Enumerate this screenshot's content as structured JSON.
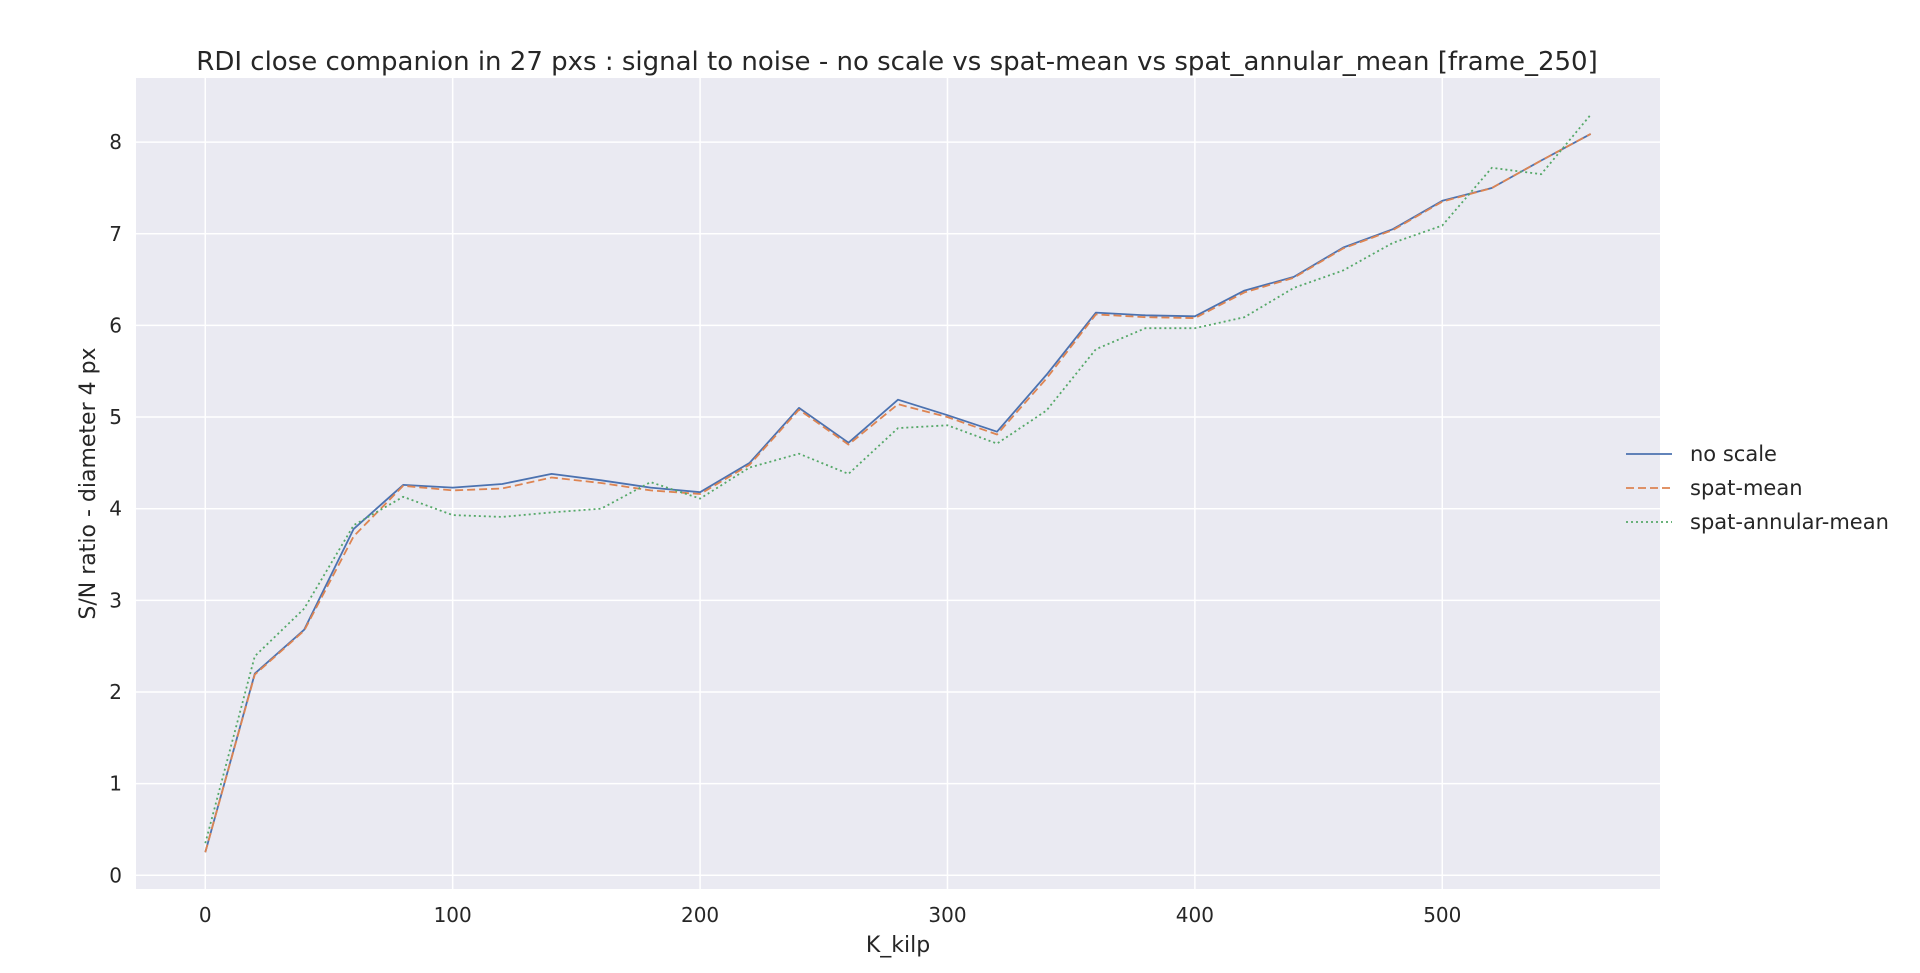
{
  "chart_data": {
    "type": "line",
    "title": "RDI close companion in 27 pxs : signal to noise - no scale vs spat-mean vs spat_annular_mean [frame_250]",
    "xlabel": "K_kilp",
    "ylabel": "S/N ratio - diameter 4 px",
    "xlim": [
      -28,
      588
    ],
    "ylim": [
      -0.15,
      8.7
    ],
    "xticks": [
      0,
      100,
      200,
      300,
      400,
      500
    ],
    "yticks": [
      0,
      1,
      2,
      3,
      4,
      5,
      6,
      7,
      8
    ],
    "grid": true,
    "legend_position": "right",
    "x": [
      0,
      20,
      40,
      60,
      80,
      100,
      120,
      140,
      160,
      180,
      200,
      220,
      240,
      260,
      280,
      300,
      320,
      340,
      360,
      380,
      400,
      420,
      440,
      460,
      480,
      500,
      520,
      540,
      560
    ],
    "series": [
      {
        "name": "no scale",
        "color": "#4c72b0",
        "dash": "solid",
        "values": [
          0.25,
          2.2,
          2.68,
          3.78,
          4.26,
          4.23,
          4.27,
          4.38,
          4.31,
          4.23,
          4.18,
          4.5,
          5.1,
          4.72,
          5.19,
          5.02,
          4.84,
          5.46,
          6.14,
          6.11,
          6.1,
          6.38,
          6.53,
          6.85,
          7.05,
          7.36,
          7.5,
          7.8,
          8.09
        ]
      },
      {
        "name": "spat-mean",
        "color": "#dd8452",
        "dash": "dashed",
        "values": [
          0.25,
          2.19,
          2.67,
          3.7,
          4.25,
          4.2,
          4.22,
          4.34,
          4.28,
          4.2,
          4.16,
          4.48,
          5.08,
          4.7,
          5.14,
          5.0,
          4.81,
          5.42,
          6.12,
          6.09,
          6.08,
          6.36,
          6.52,
          6.84,
          7.04,
          7.35,
          7.5,
          7.8,
          8.09
        ]
      },
      {
        "name": "spat-annular-mean",
        "color": "#55a868",
        "dash": "dotted",
        "values": [
          0.35,
          2.39,
          2.91,
          3.82,
          4.13,
          3.93,
          3.91,
          3.96,
          4.0,
          4.29,
          4.11,
          4.45,
          4.6,
          4.38,
          4.88,
          4.91,
          4.71,
          5.07,
          5.74,
          5.97,
          5.97,
          6.09,
          6.41,
          6.6,
          6.9,
          7.09,
          7.72,
          7.65,
          8.3
        ]
      }
    ]
  }
}
